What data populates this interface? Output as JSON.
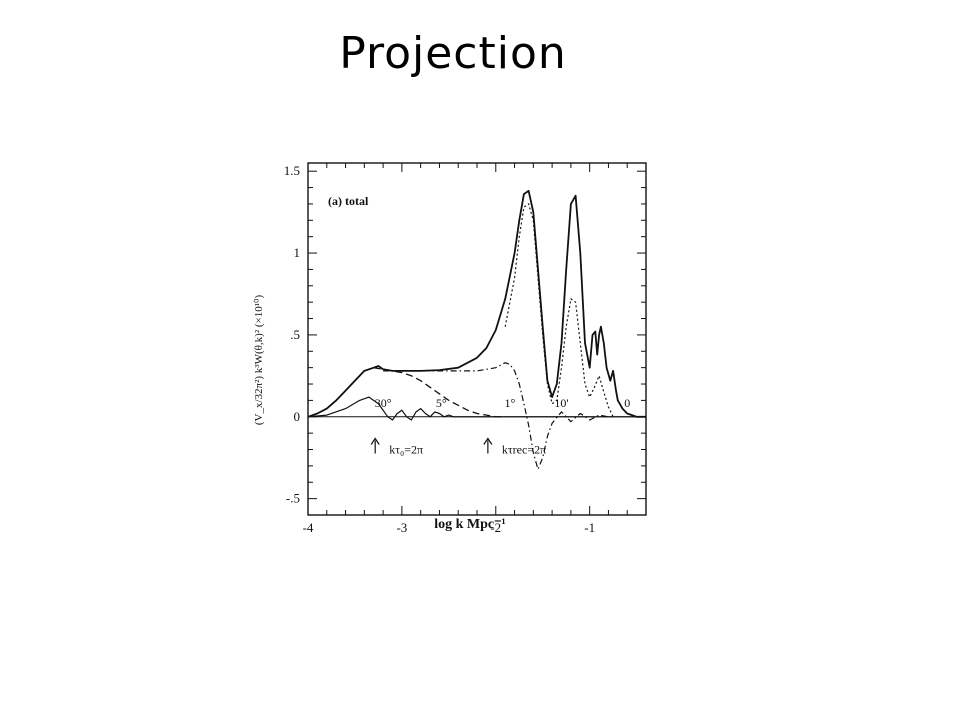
{
  "slide": {
    "title": "Projection"
  },
  "chart_data": {
    "type": "line",
    "panel_label": "(a) total",
    "xlabel": "log k  Mpc⁻¹",
    "ylabel": "(V_x/32π²) k³W(θ,k)² (×10¹⁰)",
    "xlim": [
      -4,
      -0.4
    ],
    "ylim": [
      -0.6,
      1.55
    ],
    "xticks": [
      "-4",
      "-3",
      "-2",
      "-1"
    ],
    "xtick_values": [
      -4,
      -3,
      -2,
      -1
    ],
    "yticks": [
      "-.5",
      "0",
      ".5",
      "1",
      "1.5"
    ],
    "ytick_values": [
      -0.5,
      0,
      0.5,
      1,
      1.5
    ],
    "angle_labels": [
      {
        "text": "30°",
        "x": -3.2,
        "y": 0.06
      },
      {
        "text": "5°",
        "x": -2.58,
        "y": 0.06
      },
      {
        "text": "1°",
        "x": -1.85,
        "y": 0.06
      },
      {
        "text": "10'",
        "x": -1.3,
        "y": 0.06
      },
      {
        "text": "0",
        "x": -0.6,
        "y": 0.06
      }
    ],
    "arrow_annotations": [
      {
        "text": "kτ₀=2π",
        "x": -3.05,
        "y": -0.2
      },
      {
        "text": "kτrec=2π",
        "x": -1.85,
        "y": -0.2
      }
    ],
    "series": [
      {
        "style": "solid",
        "x": [
          -4.0,
          -3.9,
          -3.8,
          -3.7,
          -3.6,
          -3.5,
          -3.4,
          -3.3,
          -3.25,
          -3.2,
          -3.1,
          -3.0,
          -2.9,
          -2.8,
          -2.6,
          -2.4,
          -2.2,
          -2.1,
          -2.0,
          -1.9,
          -1.8,
          -1.75,
          -1.7,
          -1.65,
          -1.6,
          -1.55,
          -1.5,
          -1.45,
          -1.4,
          -1.35,
          -1.3,
          -1.25,
          -1.2,
          -1.15,
          -1.1,
          -1.05,
          -1.0,
          -0.97,
          -0.94,
          -0.92,
          -0.9,
          -0.88,
          -0.85,
          -0.82,
          -0.78,
          -0.75,
          -0.72,
          -0.7,
          -0.65,
          -0.6,
          -0.55,
          -0.5,
          -0.45,
          -0.4
        ],
        "y": [
          0.0,
          0.02,
          0.05,
          0.1,
          0.16,
          0.22,
          0.28,
          0.3,
          0.31,
          0.29,
          0.28,
          0.28,
          0.28,
          0.28,
          0.285,
          0.3,
          0.36,
          0.42,
          0.53,
          0.72,
          1.0,
          1.2,
          1.36,
          1.38,
          1.25,
          0.9,
          0.55,
          0.22,
          0.12,
          0.2,
          0.45,
          0.9,
          1.3,
          1.35,
          1.0,
          0.45,
          0.3,
          0.5,
          0.52,
          0.38,
          0.5,
          0.55,
          0.45,
          0.3,
          0.22,
          0.28,
          0.16,
          0.1,
          0.05,
          0.02,
          0.01,
          0.0,
          0.0,
          0.0
        ]
      },
      {
        "style": "dashed",
        "x": [
          -3.3,
          -3.2,
          -3.0,
          -2.9,
          -2.8,
          -2.7,
          -2.6,
          -2.5,
          -2.4,
          -2.3,
          -2.2,
          -2.1,
          -2.0,
          -1.9
        ],
        "y": [
          0.3,
          0.29,
          0.27,
          0.25,
          0.22,
          0.18,
          0.14,
          0.1,
          0.07,
          0.04,
          0.02,
          0.01,
          0.0,
          0.0
        ]
      },
      {
        "style": "dashdot",
        "x": [
          -3.2,
          -3.0,
          -2.8,
          -2.6,
          -2.4,
          -2.2,
          -2.0,
          -1.9,
          -1.85,
          -1.8,
          -1.75,
          -1.7,
          -1.65,
          -1.6,
          -1.55,
          -1.5,
          -1.45,
          -1.4,
          -1.3,
          -1.2,
          -1.1,
          -1.0,
          -0.9,
          -0.8
        ],
        "y": [
          0.28,
          0.28,
          0.28,
          0.28,
          0.28,
          0.28,
          0.3,
          0.33,
          0.32,
          0.28,
          0.2,
          0.08,
          -0.05,
          -0.22,
          -0.32,
          -0.25,
          -0.12,
          -0.04,
          0.03,
          -0.03,
          0.02,
          -0.02,
          0.01,
          0.0
        ]
      },
      {
        "style": "dotted",
        "x": [
          -1.9,
          -1.8,
          -1.75,
          -1.7,
          -1.65,
          -1.6,
          -1.55,
          -1.5,
          -1.45,
          -1.4,
          -1.35,
          -1.3,
          -1.25,
          -1.2,
          -1.15,
          -1.1,
          -1.05,
          -1.0,
          -0.95,
          -0.9,
          -0.85,
          -0.8,
          -0.75
        ],
        "y": [
          0.55,
          0.85,
          1.1,
          1.28,
          1.3,
          1.2,
          0.85,
          0.5,
          0.2,
          0.08,
          0.1,
          0.3,
          0.55,
          0.72,
          0.7,
          0.45,
          0.2,
          0.12,
          0.18,
          0.25,
          0.15,
          0.06,
          0.0
        ]
      },
      {
        "style": "solid-thin",
        "x": [
          -4.0,
          -3.8,
          -3.6,
          -3.45,
          -3.35,
          -3.25,
          -3.15,
          -3.1,
          -3.05,
          -3.0,
          -2.95,
          -2.9,
          -2.85,
          -2.8,
          -2.75,
          -2.7,
          -2.65,
          -2.6,
          -2.55,
          -2.5,
          -2.45,
          -2.4,
          -2.3,
          -2.2,
          -2.0,
          -1.8,
          -1.6,
          -1.4,
          -1.2,
          -1.0,
          -0.8,
          -0.6,
          -0.4
        ],
        "y": [
          0.0,
          0.01,
          0.05,
          0.1,
          0.12,
          0.08,
          0.0,
          -0.02,
          0.02,
          0.04,
          0.0,
          -0.02,
          0.03,
          0.05,
          0.02,
          0.0,
          0.03,
          0.02,
          0.0,
          0.01,
          0.0,
          0.0,
          0.0,
          0.0,
          0.0,
          0.0,
          0.0,
          0.0,
          0.0,
          0.0,
          0.0,
          0.0,
          0.0
        ]
      }
    ]
  }
}
